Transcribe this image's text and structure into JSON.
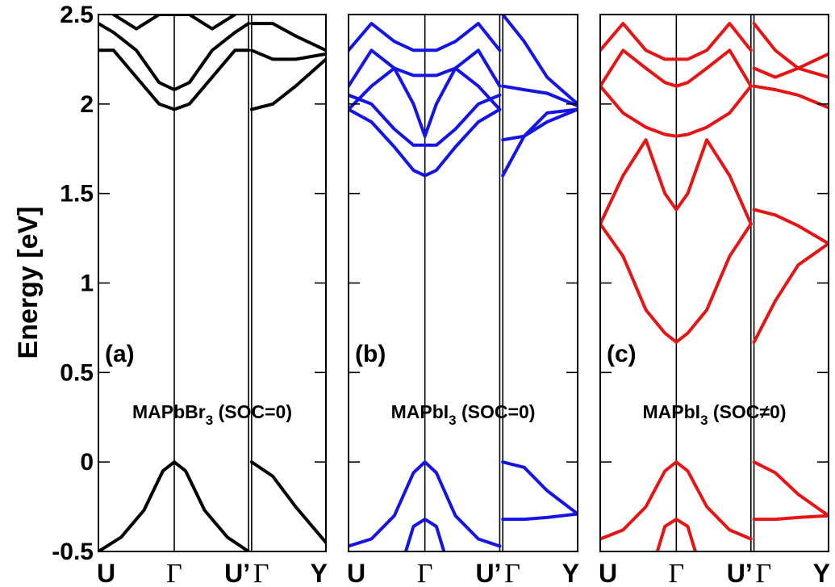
{
  "chart_data": [
    {
      "type": "line",
      "panel_tag": "(a)",
      "title_main": "MAPbBr",
      "title_sub": "3",
      "title_rest": " (SOC=0)",
      "color": "#000000",
      "xlabel": "",
      "ylabel": "Energy [eV]",
      "ylim": [
        -0.5,
        2.5
      ],
      "x_ticks": [
        "U",
        "Γ",
        "U’",
        "Γ",
        "Y"
      ],
      "x_tick_positions": [
        0,
        1,
        1.98,
        2.02,
        3
      ],
      "series": [
        {
          "x": [
            0,
            0.3,
            0.6,
            0.85,
            1,
            1.15,
            1.4,
            1.7,
            1.98
          ],
          "y": [
            -0.5,
            -0.42,
            -0.27,
            -0.05,
            0,
            -0.05,
            -0.27,
            -0.42,
            -0.5
          ]
        },
        {
          "x": [
            2.02,
            2.3,
            2.6,
            3
          ],
          "y": [
            0,
            -0.08,
            -0.25,
            -0.45
          ]
        },
        {
          "x": [
            0,
            0.2,
            0.5,
            0.8,
            1,
            1.2,
            1.5,
            1.8,
            1.98
          ],
          "y": [
            2.3,
            2.3,
            2.15,
            2.0,
            1.97,
            2.0,
            2.15,
            2.3,
            2.3
          ]
        },
        {
          "x": [
            0,
            0.2,
            0.5,
            0.8,
            1,
            1.2,
            1.5,
            1.8,
            1.98
          ],
          "y": [
            2.45,
            2.4,
            2.3,
            2.12,
            2.08,
            2.12,
            2.3,
            2.4,
            2.45
          ]
        },
        {
          "x": [
            0,
            0.2,
            0.5,
            0.8,
            1,
            1.2,
            1.5,
            1.8,
            1.98
          ],
          "y": [
            2.6,
            2.5,
            2.42,
            2.5,
            2.5,
            2.5,
            2.42,
            2.5,
            2.6
          ]
        },
        {
          "x": [
            2.02,
            2.3,
            2.6,
            3
          ],
          "y": [
            1.97,
            2.0,
            2.1,
            2.25
          ]
        },
        {
          "x": [
            2.02,
            2.3,
            2.6,
            3
          ],
          "y": [
            2.3,
            2.25,
            2.25,
            2.28
          ]
        },
        {
          "x": [
            2.02,
            2.3,
            2.6,
            3
          ],
          "y": [
            2.45,
            2.45,
            2.38,
            2.3
          ]
        }
      ]
    },
    {
      "type": "line",
      "panel_tag": "(b)",
      "title_main": "MAPbI",
      "title_sub": "3",
      "title_rest": " (SOC=0)",
      "color": "#1414e6",
      "xlabel": "",
      "ylabel": "",
      "ylim": [
        -0.5,
        2.5
      ],
      "x_ticks": [
        "U",
        "Γ",
        "U’",
        "Γ",
        "Y"
      ],
      "x_tick_positions": [
        0,
        1,
        1.98,
        2.02,
        3
      ],
      "series": [
        {
          "x": [
            0,
            0.3,
            0.6,
            0.85,
            1,
            1.15,
            1.4,
            1.7,
            1.98
          ],
          "y": [
            -0.47,
            -0.43,
            -0.3,
            -0.06,
            0,
            -0.06,
            -0.3,
            -0.43,
            -0.47
          ]
        },
        {
          "x": [
            0.75,
            0.85,
            1,
            1.15,
            1.25
          ],
          "y": [
            -0.5,
            -0.36,
            -0.32,
            -0.36,
            -0.5
          ]
        },
        {
          "x": [
            2.02,
            2.3,
            2.6,
            3
          ],
          "y": [
            0,
            -0.03,
            -0.16,
            -0.29
          ]
        },
        {
          "x": [
            2.02,
            2.3,
            2.6,
            3
          ],
          "y": [
            -0.32,
            -0.32,
            -0.31,
            -0.29
          ]
        },
        {
          "x": [
            0,
            0.3,
            0.6,
            0.85,
            1,
            1.15,
            1.4,
            1.7,
            1.98
          ],
          "y": [
            1.97,
            1.9,
            1.76,
            1.63,
            1.6,
            1.63,
            1.76,
            1.9,
            1.97
          ]
        },
        {
          "x": [
            0,
            0.3,
            0.6,
            0.85,
            1,
            1.15,
            1.4,
            1.7,
            1.98
          ],
          "y": [
            2.05,
            2.0,
            1.86,
            1.77,
            1.77,
            1.77,
            1.86,
            2.0,
            2.05
          ]
        },
        {
          "x": [
            0,
            0.3,
            0.6,
            0.85,
            1,
            1.15,
            1.4,
            1.7,
            1.98
          ],
          "y": [
            1.97,
            2.1,
            2.2,
            2.0,
            1.82,
            2.0,
            2.2,
            2.1,
            1.97
          ]
        },
        {
          "x": [
            0,
            0.3,
            0.6,
            0.85,
            1,
            1.15,
            1.4,
            1.7,
            1.98
          ],
          "y": [
            2.1,
            2.3,
            2.2,
            2.16,
            2.16,
            2.16,
            2.2,
            2.3,
            2.1
          ]
        },
        {
          "x": [
            0,
            0.3,
            0.6,
            0.85,
            1,
            1.15,
            1.4,
            1.7,
            1.98
          ],
          "y": [
            2.3,
            2.45,
            2.35,
            2.3,
            2.3,
            2.3,
            2.35,
            2.45,
            2.3
          ]
        },
        {
          "x": [
            2.02,
            2.3,
            2.6,
            3
          ],
          "y": [
            1.6,
            1.82,
            1.95,
            1.97
          ]
        },
        {
          "x": [
            2.02,
            2.3,
            2.6,
            3
          ],
          "y": [
            1.8,
            1.82,
            1.9,
            1.97
          ]
        },
        {
          "x": [
            2.02,
            2.3,
            2.6,
            3
          ],
          "y": [
            2.1,
            2.08,
            2.06,
            1.99
          ]
        },
        {
          "x": [
            2.02,
            2.3,
            2.6,
            3
          ],
          "y": [
            2.5,
            2.35,
            2.15,
            2.0
          ]
        }
      ]
    },
    {
      "type": "line",
      "panel_tag": "(c)",
      "title_main": "MAPbI",
      "title_sub": "3",
      "title_rest": " (SOC≠0)",
      "color": "#e61414",
      "xlabel": "",
      "ylabel": "",
      "ylim": [
        -0.5,
        2.5
      ],
      "x_ticks": [
        "U",
        "Γ",
        "U’",
        "Γ",
        "Y"
      ],
      "x_tick_positions": [
        0,
        1,
        1.98,
        2.02,
        3
      ],
      "series": [
        {
          "x": [
            0,
            0.3,
            0.6,
            0.85,
            1,
            1.15,
            1.4,
            1.7,
            1.98
          ],
          "y": [
            -0.43,
            -0.38,
            -0.25,
            -0.05,
            0,
            -0.05,
            -0.25,
            -0.38,
            -0.43
          ]
        },
        {
          "x": [
            0.75,
            0.85,
            1,
            1.15,
            1.25
          ],
          "y": [
            -0.5,
            -0.36,
            -0.32,
            -0.36,
            -0.5
          ]
        },
        {
          "x": [
            2.02,
            2.3,
            2.6,
            3
          ],
          "y": [
            0,
            -0.06,
            -0.18,
            -0.3
          ]
        },
        {
          "x": [
            2.02,
            2.3,
            2.6,
            3
          ],
          "y": [
            -0.32,
            -0.32,
            -0.31,
            -0.3
          ]
        },
        {
          "x": [
            0,
            0.3,
            0.6,
            0.85,
            1,
            1.15,
            1.4,
            1.7,
            1.98
          ],
          "y": [
            1.33,
            1.15,
            0.85,
            0.72,
            0.67,
            0.72,
            0.85,
            1.15,
            1.33
          ]
        },
        {
          "x": [
            0,
            0.3,
            0.6,
            0.85,
            1,
            1.15,
            1.4,
            1.7,
            1.98
          ],
          "y": [
            1.33,
            1.6,
            1.8,
            1.5,
            1.41,
            1.5,
            1.8,
            1.6,
            1.33
          ]
        },
        {
          "x": [
            2.02,
            2.3,
            2.6,
            3
          ],
          "y": [
            0.67,
            0.9,
            1.1,
            1.22
          ]
        },
        {
          "x": [
            2.02,
            2.3,
            2.6,
            3
          ],
          "y": [
            1.41,
            1.38,
            1.32,
            1.22
          ]
        },
        {
          "x": [
            0,
            0.3,
            0.6,
            0.85,
            1,
            1.15,
            1.4,
            1.7,
            1.98
          ],
          "y": [
            2.1,
            1.95,
            1.87,
            1.83,
            1.82,
            1.83,
            1.87,
            1.95,
            2.1
          ]
        },
        {
          "x": [
            0,
            0.3,
            0.6,
            0.85,
            1,
            1.15,
            1.4,
            1.7,
            1.98
          ],
          "y": [
            2.1,
            2.3,
            2.2,
            2.12,
            2.1,
            2.12,
            2.2,
            2.3,
            2.1
          ]
        },
        {
          "x": [
            0,
            0.3,
            0.6,
            0.85,
            1,
            1.15,
            1.4,
            1.7,
            1.98
          ],
          "y": [
            2.3,
            2.45,
            2.3,
            2.25,
            2.25,
            2.25,
            2.3,
            2.45,
            2.3
          ]
        },
        {
          "x": [
            2.02,
            2.3,
            2.6,
            3
          ],
          "y": [
            2.1,
            2.08,
            2.05,
            1.98
          ]
        },
        {
          "x": [
            2.02,
            2.3,
            2.6,
            3
          ],
          "y": [
            2.2,
            2.15,
            2.2,
            2.28
          ]
        },
        {
          "x": [
            2.02,
            2.3,
            2.6,
            3
          ],
          "y": [
            2.45,
            2.3,
            2.2,
            2.15
          ]
        }
      ]
    }
  ],
  "y_ticks": [
    "2.5",
    "2",
    "1.5",
    "1",
    "0.5",
    "0",
    "-0.5"
  ],
  "y_tick_values": [
    2.5,
    2,
    1.5,
    1,
    0.5,
    0,
    -0.5
  ]
}
